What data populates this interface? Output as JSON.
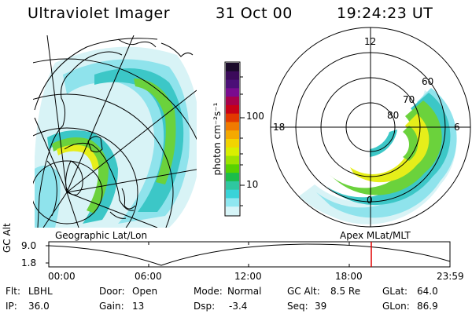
{
  "header": {
    "instrument": "Ultraviolet Imager",
    "date": "31 Oct 00",
    "time": "19:24:23 UT"
  },
  "colorbar": {
    "label": "photon cm⁻²s⁻¹",
    "ticks": [
      "100",
      "10"
    ],
    "colors": [
      "#1a0a2a",
      "#3b0b5a",
      "#4b0f77",
      "#7a0b8f",
      "#a8004a",
      "#c80017",
      "#e23800",
      "#f07a00",
      "#f4a900",
      "#f2d400",
      "#d9ef00",
      "#9ee300",
      "#57d200",
      "#1bbd4a",
      "#2fc7a0",
      "#39d3d8",
      "#8fe7f0",
      "#d7f5f8"
    ]
  },
  "left_map": {
    "title": "Geographic Lat/Lon"
  },
  "polar_map": {
    "title": "Apex MLat/MLT",
    "lat_labels": [
      "60",
      "70",
      "80"
    ],
    "mlt_labels": [
      "12",
      "18",
      "6",
      "0"
    ]
  },
  "timeline": {
    "ylabel": "GC Alt",
    "yticks": [
      "9.0",
      "1.8"
    ],
    "xticks": [
      "00:00",
      "06:00",
      "12:00",
      "18:00",
      "23:59"
    ],
    "current_time": "19:24",
    "marker_color": "#e00000"
  },
  "info": {
    "flt_label": "Flt:",
    "flt_value": "LBHL",
    "ip_label": "IP:",
    "ip_value": "36.0",
    "door_label": "Door:",
    "door_value": "Open",
    "gain_label": "Gain:",
    "gain_value": "13",
    "mode_label": "Mode:",
    "mode_value": "Normal",
    "dsp_label": "Dsp:",
    "dsp_value": "-3.4",
    "gcalt_label": "GC Alt:",
    "gcalt_value": "8.5 Re",
    "seq_label": "Seq:",
    "seq_value": "39",
    "glat_label": "GLat:",
    "glat_value": "64.0",
    "glon_label": "GLon:",
    "glon_value": "86.9"
  }
}
